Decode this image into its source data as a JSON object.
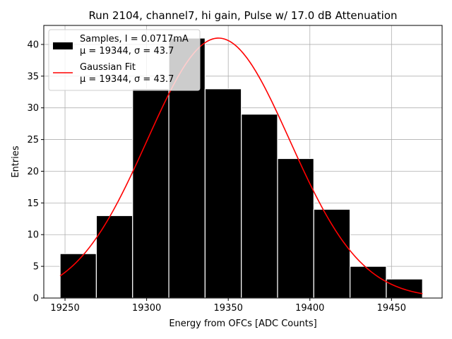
{
  "chart_data": {
    "type": "bar",
    "title": "Run 2104, channel7, hi gain, Pulse w/ 17.0 dB Attenuation",
    "xlabel": "Energy from OFCs [ADC Counts]",
    "ylabel": "Entries",
    "xlim": [
      19237,
      19481
    ],
    "ylim": [
      0,
      43
    ],
    "xticks": [
      19250,
      19300,
      19350,
      19400,
      19450
    ],
    "yticks": [
      0,
      5,
      10,
      15,
      20,
      25,
      30,
      35,
      40
    ],
    "grid": true,
    "legend_position": "top-left",
    "histogram": {
      "bin_edges": [
        19247,
        19269.2,
        19291.4,
        19313.6,
        19335.8,
        19358,
        19380.2,
        19402.4,
        19424.6,
        19446.8,
        19469
      ],
      "counts": [
        7,
        13,
        33,
        41,
        33,
        29,
        22,
        14,
        5,
        3
      ],
      "color": "#000000",
      "edge_color": "#ffffff"
    },
    "fit_curve": {
      "mu": 19344,
      "sigma": 43.7,
      "amplitude": 41,
      "x_range": [
        19247,
        19469
      ],
      "color": "#ff0000"
    },
    "legend": [
      {
        "line1": "Samples, I = 0.0717mA",
        "line2": "μ = 19344, σ = 43.7",
        "marker": "box",
        "color": "#000000"
      },
      {
        "line1": "Gaussian Fit",
        "line2": "μ = 19344, σ = 43.7",
        "marker": "line",
        "color": "#ff0000"
      }
    ]
  }
}
